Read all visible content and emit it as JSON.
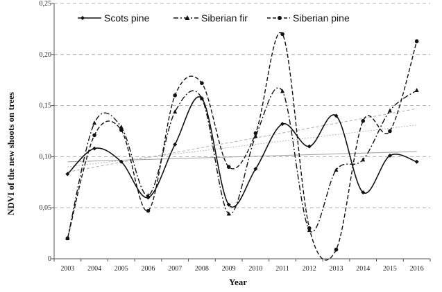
{
  "chart_data": {
    "type": "line",
    "x": [
      2003,
      2004,
      2005,
      2006,
      2007,
      2008,
      2009,
      2010,
      2011,
      2012,
      2013,
      2014,
      2015,
      2016
    ],
    "x_tick_labels": [
      "2003",
      "2004",
      "2005",
      "2006",
      "2007",
      "2008",
      "2009",
      "2010",
      "2011",
      "2012",
      "2013",
      "2014",
      "2015",
      "2016"
    ],
    "xlabel": "Year",
    "ylabel": "NDVI of the new shoots on trees",
    "ylim": [
      0,
      0.25
    ],
    "y_ticks": [
      0,
      0.05,
      0.1,
      0.15,
      0.2,
      0.25
    ],
    "y_tick_labels": [
      "0",
      "0,05",
      "0,10",
      "0,15",
      "0,20",
      "0,25"
    ],
    "grid": "horizontal dashed",
    "legend_position": "top",
    "series": [
      {
        "name": "Scots pine",
        "line_style": "solid",
        "marker": "diamond",
        "values": [
          0.083,
          0.108,
          0.095,
          0.06,
          0.112,
          0.157,
          0.053,
          0.088,
          0.132,
          0.11,
          0.14,
          0.065,
          0.101,
          0.095
        ],
        "trend": [
          0.095,
          0.105
        ]
      },
      {
        "name": "Siberian fir",
        "line_style": "dash-dot",
        "marker": "triangle",
        "values": [
          0.02,
          0.133,
          0.129,
          0.062,
          0.144,
          0.157,
          0.044,
          0.12,
          0.164,
          0.028,
          0.087,
          0.097,
          0.145,
          0.165
        ],
        "trend": [
          0.085,
          0.147
        ]
      },
      {
        "name": "Siberian pine",
        "line_style": "dashed",
        "marker": "circle",
        "values": [
          0.02,
          0.121,
          0.126,
          0.047,
          0.16,
          0.172,
          0.09,
          0.123,
          0.22,
          0.03,
          0.009,
          0.135,
          0.125,
          0.213
        ],
        "trend": [
          0.09,
          0.131
        ]
      }
    ]
  }
}
